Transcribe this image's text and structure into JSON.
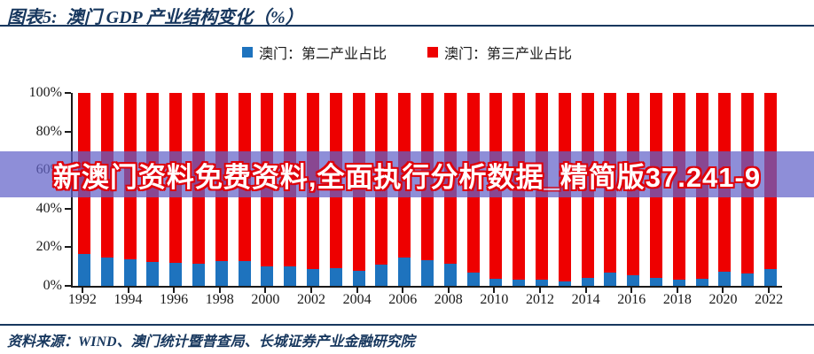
{
  "header": {
    "figure_label": "图表5:",
    "title": "澳门 GDP 产业结构变化（%）"
  },
  "legend": {
    "items": [
      {
        "name": "secondary",
        "label": "澳门：第二产业占比",
        "color": "#1E73BE"
      },
      {
        "name": "tertiary",
        "label": "澳门：第三产业占比",
        "color": "#EE0000"
      }
    ]
  },
  "chart_data": {
    "type": "bar",
    "stacked": true,
    "title": "澳门 GDP 产业结构变化（%）",
    "xlabel": "",
    "ylabel": "",
    "ylim": [
      0,
      100
    ],
    "grid": false,
    "legend_position": "top",
    "categories": [
      1992,
      1993,
      1994,
      1995,
      1996,
      1997,
      1998,
      1999,
      2000,
      2001,
      2002,
      2003,
      2004,
      2005,
      2006,
      2007,
      2008,
      2009,
      2010,
      2011,
      2012,
      2013,
      2014,
      2015,
      2016,
      2017,
      2018,
      2019,
      2020,
      2021,
      2022
    ],
    "series": [
      {
        "name": "澳门：第二产业占比",
        "color": "#1E73BE",
        "values": [
          16.4,
          14.9,
          13.8,
          12.3,
          11.8,
          11.5,
          12.7,
          12.7,
          10.3,
          10.0,
          8.5,
          9.2,
          8.0,
          11.2,
          14.8,
          13.3,
          11.4,
          7.0,
          3.7,
          3.1,
          3.2,
          2.5,
          4.2,
          6.9,
          5.6,
          4.3,
          3.3,
          3.8,
          7.4,
          6.2,
          8.5
        ]
      },
      {
        "name": "澳门：第三产业占比",
        "color": "#EE0000",
        "values": [
          83.6,
          85.1,
          86.2,
          87.7,
          88.2,
          88.5,
          87.3,
          87.3,
          89.7,
          90.0,
          91.5,
          90.8,
          92.0,
          88.8,
          85.2,
          86.7,
          88.6,
          93.0,
          96.3,
          96.9,
          96.8,
          97.5,
          95.8,
          93.1,
          94.4,
          95.7,
          96.7,
          96.2,
          92.6,
          93.8,
          91.5
        ]
      }
    ],
    "yticks": [
      {
        "label": "0%",
        "value": 0
      },
      {
        "label": "20%",
        "value": 20
      },
      {
        "label": "40%",
        "value": 40
      },
      {
        "label": "60%",
        "value": 60
      },
      {
        "label": "80%",
        "value": 80
      },
      {
        "label": "100%",
        "value": 100
      }
    ],
    "xtick_labels": [
      "1992",
      "1994",
      "1996",
      "1998",
      "2000",
      "2002",
      "2004",
      "2006",
      "2008",
      "2010",
      "2012",
      "2014",
      "2016",
      "2018",
      "2020",
      "2022"
    ]
  },
  "watermark": {
    "text": "新澳门资料免费资料,全面执行分析数据_精简版37.241-9",
    "band_color": "rgba(99,99,201,0.72)",
    "text_color": "#FFFFFF",
    "outline_color": "#E0000A"
  },
  "footer": {
    "source": "资料来源：WIND、澳门统计暨普查局、长城证券产业金融研究院"
  }
}
